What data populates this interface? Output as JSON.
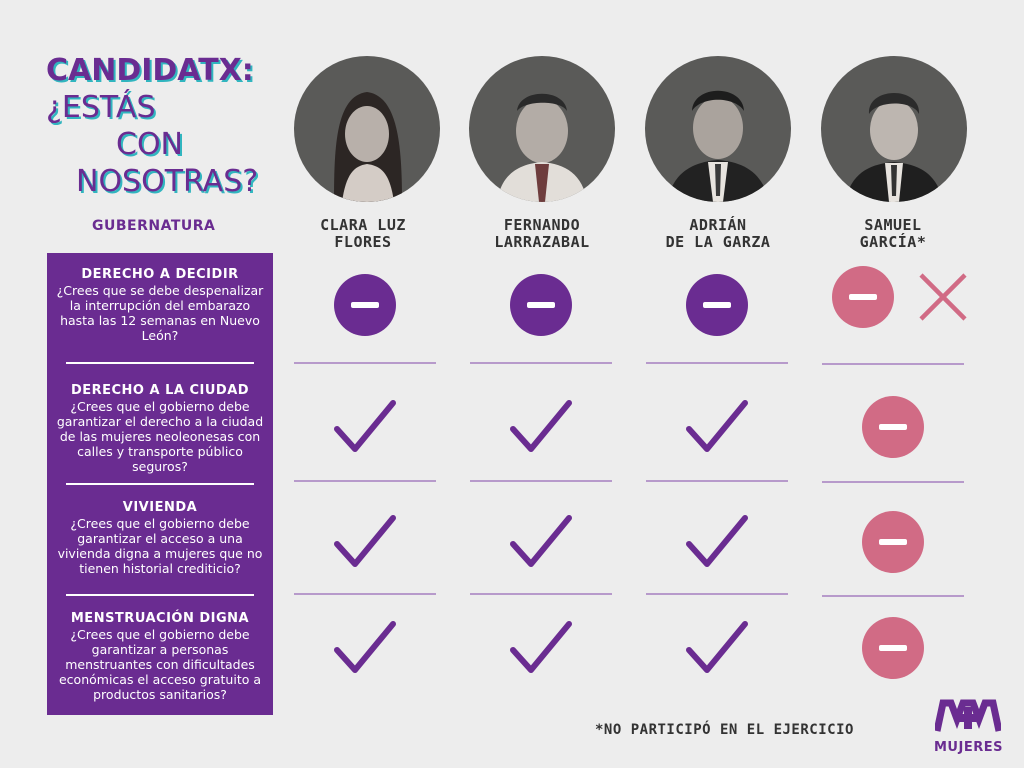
{
  "title": {
    "line1": "CANDIDATX:",
    "line2": "¿ESTÁS",
    "line3": "CON",
    "line4": "NOSOTRAS?"
  },
  "section_label": "GUBERNATURA",
  "candidates": [
    {
      "name_line1": "CLARA LUZ",
      "name_line2": "FLORES"
    },
    {
      "name_line1": "FERNANDO",
      "name_line2": "LARRAZABAL"
    },
    {
      "name_line1": "ADRIÁN",
      "name_line2": "DE LA GARZA"
    },
    {
      "name_line1": "SAMUEL",
      "name_line2": "GARCÍA*"
    }
  ],
  "questions": [
    {
      "heading": "DERECHO A DECIDIR",
      "text": "¿Crees que se debe despenalizar la interrupción del embarazo hasta las 12 semanas en Nuevo León?",
      "answers": [
        "minus",
        "minus",
        "minus",
        "minus-x"
      ]
    },
    {
      "heading": "DERECHO A LA CIUDAD",
      "text": "¿Crees que el gobierno debe garantizar el derecho a la ciudad de las mujeres neoleonesas con calles y transporte público seguros?",
      "answers": [
        "check",
        "check",
        "check",
        "minus"
      ]
    },
    {
      "heading": "VIVIENDA",
      "text": "¿Crees que el gobierno debe garantizar el acceso a una vivienda digna a mujeres que no tienen historial crediticio?",
      "answers": [
        "check",
        "check",
        "check",
        "minus"
      ]
    },
    {
      "heading": "MENSTRUACIÓN DIGNA",
      "text": "¿Crees que el gobierno debe garantizar a personas menstruantes con dificultades económicas el acceso gratuito a productos sanitarios?",
      "answers": [
        "check",
        "check",
        "check",
        "minus"
      ]
    }
  ],
  "footnote": "*NO PARTICIPÓ EN EL EJERCICIO",
  "logo": {
    "text": "MUJERES",
    "mark": "M+M"
  },
  "colors": {
    "purple": "#6a2c91",
    "pink": "#d16b85",
    "teal": "#31b5bf",
    "background": "#ededed"
  }
}
